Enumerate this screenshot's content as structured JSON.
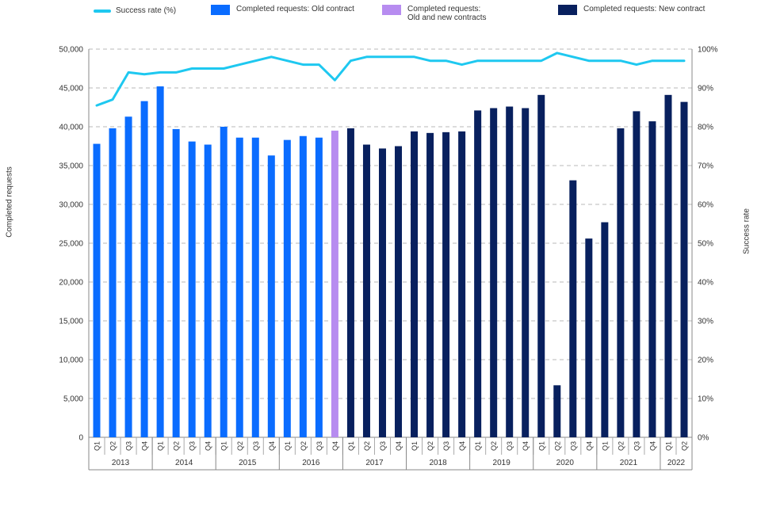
{
  "chart_data": {
    "type": "bar",
    "title": "",
    "ylabel": "Completed requests",
    "y2label": "Success rate",
    "ylim": [
      0,
      50000
    ],
    "y2lim": [
      0,
      100
    ],
    "yticks": [
      "0",
      "5,000",
      "10,000",
      "15,000",
      "20,000",
      "25,000",
      "30,000",
      "35,000",
      "40,000",
      "45,000",
      "50,000"
    ],
    "y2ticks": [
      "0%",
      "10%",
      "20%",
      "30%",
      "40%",
      "50%",
      "60%",
      "70%",
      "80%",
      "90%",
      "100%"
    ],
    "grid": true,
    "legend_position": "top",
    "colors": {
      "old": "#0a6cff",
      "mixed": "#b78cf0",
      "new": "#08205e",
      "line": "#1ec8f0"
    },
    "categories": [
      "Q1",
      "Q2",
      "Q3",
      "Q4",
      "Q1",
      "Q2",
      "Q3",
      "Q4",
      "Q1",
      "Q2",
      "Q3",
      "Q4",
      "Q1",
      "Q2",
      "Q3",
      "Q4",
      "Q1",
      "Q2",
      "Q3",
      "Q4",
      "Q1",
      "Q2",
      "Q3",
      "Q4",
      "Q1",
      "Q2",
      "Q3",
      "Q4",
      "Q1",
      "Q2",
      "Q3",
      "Q4",
      "Q1",
      "Q2",
      "Q3",
      "Q4",
      "Q1",
      "Q2"
    ],
    "years": [
      {
        "label": "2013",
        "count": 4
      },
      {
        "label": "2014",
        "count": 4
      },
      {
        "label": "2015",
        "count": 4
      },
      {
        "label": "2016",
        "count": 4
      },
      {
        "label": "2017",
        "count": 4
      },
      {
        "label": "2018",
        "count": 4
      },
      {
        "label": "2019",
        "count": 4
      },
      {
        "label": "2020",
        "count": 4
      },
      {
        "label": "2021",
        "count": 4
      },
      {
        "label": "2022",
        "count": 2
      }
    ],
    "series": [
      {
        "name": "Completed  requests: Old contract",
        "key": "old",
        "values": [
          37800,
          39800,
          41300,
          43300,
          45200,
          39700,
          38100,
          37700,
          40000,
          38600,
          38600,
          36300,
          38300,
          38800,
          38600,
          null,
          null,
          null,
          null,
          null,
          null,
          null,
          null,
          null,
          null,
          null,
          null,
          null,
          null,
          null,
          null,
          null,
          null,
          null,
          null,
          null,
          null,
          null
        ]
      },
      {
        "name": "Completed  requests:\nOld and new contracts",
        "key": "mixed",
        "values": [
          null,
          null,
          null,
          null,
          null,
          null,
          null,
          null,
          null,
          null,
          null,
          null,
          null,
          null,
          null,
          39500,
          null,
          null,
          null,
          null,
          null,
          null,
          null,
          null,
          null,
          null,
          null,
          null,
          null,
          null,
          null,
          null,
          null,
          null,
          null,
          null,
          null,
          null
        ]
      },
      {
        "name": "Completed  requests: New contract",
        "key": "new",
        "values": [
          null,
          null,
          null,
          null,
          null,
          null,
          null,
          null,
          null,
          null,
          null,
          null,
          null,
          null,
          null,
          null,
          39800,
          37700,
          37200,
          37500,
          39400,
          39200,
          39300,
          39400,
          42100,
          42400,
          42600,
          42400,
          44100,
          6700,
          33100,
          25600,
          27700,
          39800,
          42000,
          40700,
          44100,
          43200
        ]
      },
      {
        "name": "Success rate (%)",
        "key": "line",
        "axis": "y2",
        "values": [
          85.5,
          87,
          94,
          93.5,
          94,
          94,
          95,
          95,
          95,
          96,
          97,
          98,
          97,
          96,
          96,
          92,
          97,
          98,
          98,
          98,
          98,
          97,
          97,
          96,
          97,
          97,
          97,
          97,
          97,
          99,
          98,
          97,
          97,
          97,
          96,
          97,
          97,
          97
        ]
      }
    ],
    "legend": [
      {
        "key": "line",
        "label": "Success rate (%)"
      },
      {
        "key": "old",
        "label": "Completed  requests: Old contract"
      },
      {
        "key": "mixed",
        "label": "Completed  requests:\nOld and new contracts"
      },
      {
        "key": "new",
        "label": "Completed  requests: New contract"
      }
    ]
  }
}
